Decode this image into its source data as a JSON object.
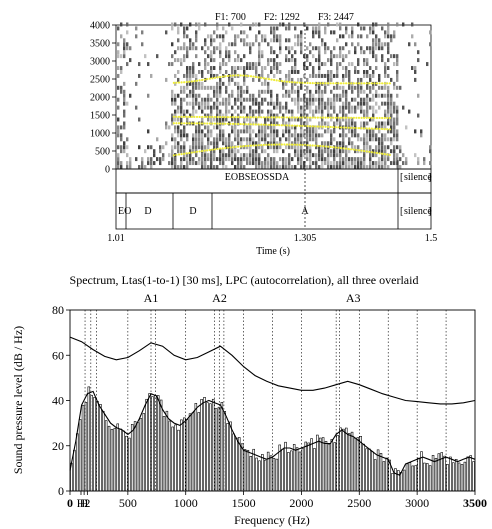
{
  "spectrogram": {
    "formant_header": [
      "F1: 700",
      "F2: 1292",
      "F3: 2447"
    ],
    "y_ticks": [
      "4000",
      "3500",
      "3000",
      "2500",
      "2000",
      "1500",
      "1000",
      "500",
      "0"
    ],
    "x_ticks": [
      "1.01",
      "1.305",
      "1.5"
    ],
    "x_label": "Time (s)",
    "cursor_time": 1.305,
    "time_range": [
      1.01,
      1.5
    ],
    "freq_range": [
      0,
      4000
    ]
  },
  "textgrid": {
    "tier1": {
      "label": "EOBSEOSSDA",
      "silence": "silence"
    },
    "tier2": {
      "labels": [
        "EO",
        "D",
        "D",
        "A"
      ],
      "silence": "silence"
    }
  },
  "chart_data": {
    "type": "line",
    "title": "Spectrum, Ltas(1-to-1) [30 ms], LPC (autocorrelation), all three overlaid",
    "xlabel": "Frequency (Hz)",
    "ylabel": "Sound pressure level (dB / Hz)",
    "xlim": [
      0,
      3500
    ],
    "ylim": [
      0,
      80
    ],
    "x_ticks": [
      "0",
      "H",
      "H",
      "2",
      "500",
      "1000",
      "1500",
      "2000",
      "2500",
      "3000",
      "3500"
    ],
    "y_ticks": [
      0,
      20,
      40,
      60,
      80
    ],
    "formant_labels": [
      {
        "label": "A1",
        "x": 700
      },
      {
        "label": "A2",
        "x": 1292
      },
      {
        "label": "A3",
        "x": 2447
      }
    ],
    "harmonic_lines": [
      130,
      180,
      230,
      500,
      700,
      740,
      1000,
      1250,
      1290,
      1330,
      1500,
      1750,
      2000,
      2300,
      2330,
      2500,
      2750,
      3000,
      3250
    ],
    "series": [
      {
        "x": [
          0,
          100,
          200,
          300,
          400,
          500,
          600,
          700,
          800,
          900,
          1000,
          1100,
          1200,
          1300,
          1400,
          1500,
          1600,
          1700,
          1800,
          1900,
          2000,
          2100,
          2200,
          2300,
          2400,
          2500,
          2600,
          2700,
          2800,
          2900,
          3000,
          3100,
          3200,
          3300,
          3400,
          3500
        ],
        "values": [
          68,
          66,
          62.5,
          59.5,
          58,
          59,
          62,
          65.5,
          64,
          60,
          58,
          59,
          61.5,
          64,
          60,
          55,
          51,
          48.5,
          46.5,
          45.5,
          44.5,
          44.5,
          45.5,
          47,
          48.5,
          47,
          45,
          43,
          41.5,
          40,
          39.5,
          39,
          38.5,
          38.5,
          39,
          40
        ]
      },
      {
        "x": [
          0,
          50,
          100,
          150,
          200,
          250,
          300,
          350,
          400,
          450,
          500,
          550,
          600,
          650,
          700,
          750,
          800,
          850,
          900,
          950,
          1000,
          1050,
          1100,
          1150,
          1200,
          1250,
          1300,
          1350,
          1400,
          1450,
          1500,
          1550,
          1600,
          1650,
          1700,
          1750,
          1800,
          1850,
          1900,
          1950,
          2000,
          2050,
          2100,
          2150,
          2200,
          2250,
          2300,
          2350,
          2400,
          2450,
          2500,
          2550,
          2600,
          2650,
          2700,
          2750,
          2800,
          2850,
          2900,
          2950,
          3000,
          3050,
          3100,
          3150,
          3200,
          3250,
          3300,
          3350,
          3400,
          3450,
          3500
        ],
        "values": [
          9,
          22,
          38,
          43,
          44,
          38,
          34,
          30,
          28,
          27,
          25,
          27,
          32,
          38,
          43,
          42,
          36,
          32,
          30,
          29,
          31,
          34,
          37,
          39,
          40,
          39,
          38,
          33,
          27,
          22,
          18,
          17,
          16,
          15,
          14,
          15,
          17,
          19,
          19,
          18,
          19,
          20,
          21,
          22,
          21,
          21,
          25,
          27,
          25,
          24,
          22,
          20,
          18,
          16,
          15,
          14,
          8,
          7,
          12,
          13,
          14,
          15,
          14,
          13,
          14,
          15,
          14,
          13,
          14,
          15,
          14
        ]
      }
    ]
  }
}
